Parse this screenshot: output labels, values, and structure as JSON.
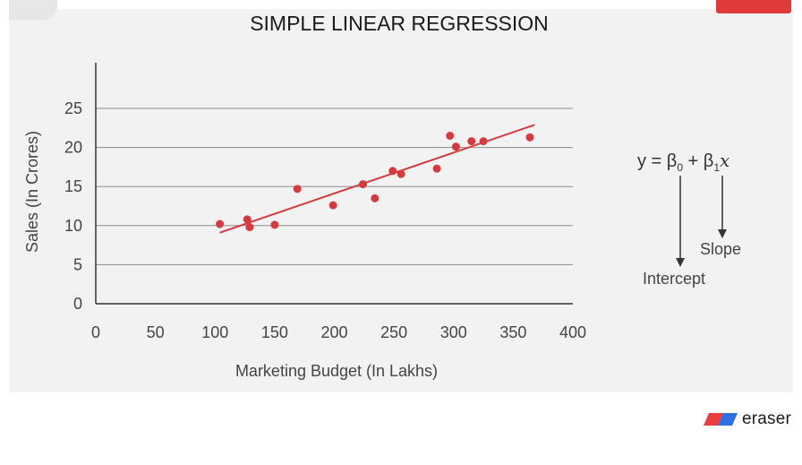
{
  "chart_data": {
    "type": "scatter",
    "title": "SIMPLE LINEAR REGRESSION",
    "xlabel": "Marketing Budget (In Lakhs)",
    "ylabel": "Sales (In Crores)",
    "xlim": [
      0,
      400
    ],
    "ylim": [
      0,
      25
    ],
    "xticks": [
      "0",
      "50",
      "100",
      "150",
      "200",
      "250",
      "300",
      "350",
      "400"
    ],
    "yticks": [
      "0",
      "5",
      "10",
      "15",
      "20",
      "25"
    ],
    "grid": true,
    "point_color": "#d43a3f",
    "line_color": "#d43a3f",
    "points": [
      {
        "x": 104,
        "y": 10.2
      },
      {
        "x": 127,
        "y": 10.8
      },
      {
        "x": 129,
        "y": 9.8
      },
      {
        "x": 150,
        "y": 10.1
      },
      {
        "x": 169,
        "y": 14.7
      },
      {
        "x": 199,
        "y": 12.6
      },
      {
        "x": 224,
        "y": 15.3
      },
      {
        "x": 234,
        "y": 13.5
      },
      {
        "x": 249,
        "y": 17.0
      },
      {
        "x": 256,
        "y": 16.6
      },
      {
        "x": 286,
        "y": 17.3
      },
      {
        "x": 297,
        "y": 21.5
      },
      {
        "x": 302,
        "y": 20.1
      },
      {
        "x": 315,
        "y": 20.8
      },
      {
        "x": 325,
        "y": 20.8
      },
      {
        "x": 364,
        "y": 21.3
      }
    ],
    "regression_line": {
      "x1": 104,
      "y1": 9.1,
      "x2": 368,
      "y2": 22.9
    }
  },
  "equation": {
    "y": "y",
    "equals": " = ",
    "beta0": "β",
    "beta0_sub": "0",
    "plus": " + ",
    "beta1": "β",
    "beta1_sub": "1",
    "x": "x",
    "intercept_label": "Intercept",
    "slope_label": "Slope"
  },
  "brand": {
    "name": "eraser",
    "colors": [
      "#e83e3e",
      "#2f6fe0"
    ]
  }
}
